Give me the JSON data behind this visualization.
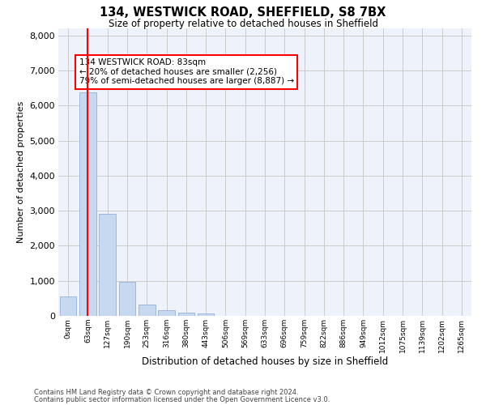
{
  "title_line1": "134, WESTWICK ROAD, SHEFFIELD, S8 7BX",
  "title_line2": "Size of property relative to detached houses in Sheffield",
  "xlabel": "Distribution of detached houses by size in Sheffield",
  "ylabel": "Number of detached properties",
  "bar_labels": [
    "0sqm",
    "63sqm",
    "127sqm",
    "190sqm",
    "253sqm",
    "316sqm",
    "380sqm",
    "443sqm",
    "506sqm",
    "569sqm",
    "633sqm",
    "696sqm",
    "759sqm",
    "822sqm",
    "886sqm",
    "949sqm",
    "1012sqm",
    "1075sqm",
    "1139sqm",
    "1202sqm",
    "1265sqm"
  ],
  "bar_values": [
    560,
    6380,
    2920,
    960,
    330,
    155,
    100,
    65,
    0,
    0,
    0,
    0,
    0,
    0,
    0,
    0,
    0,
    0,
    0,
    0,
    0
  ],
  "bar_color": "#c7d9f0",
  "bar_edge_color": "#a0b8d8",
  "grid_color": "#cccccc",
  "bg_color": "#eef2fb",
  "ylim": [
    0,
    8200
  ],
  "yticks": [
    0,
    1000,
    2000,
    3000,
    4000,
    5000,
    6000,
    7000,
    8000
  ],
  "red_line_x": 1,
  "annotation_text": "134 WESTWICK ROAD: 83sqm\n← 20% of detached houses are smaller (2,256)\n79% of semi-detached houses are larger (8,887) →",
  "footnote_line1": "Contains HM Land Registry data © Crown copyright and database right 2024.",
  "footnote_line2": "Contains public sector information licensed under the Open Government Licence v3.0."
}
